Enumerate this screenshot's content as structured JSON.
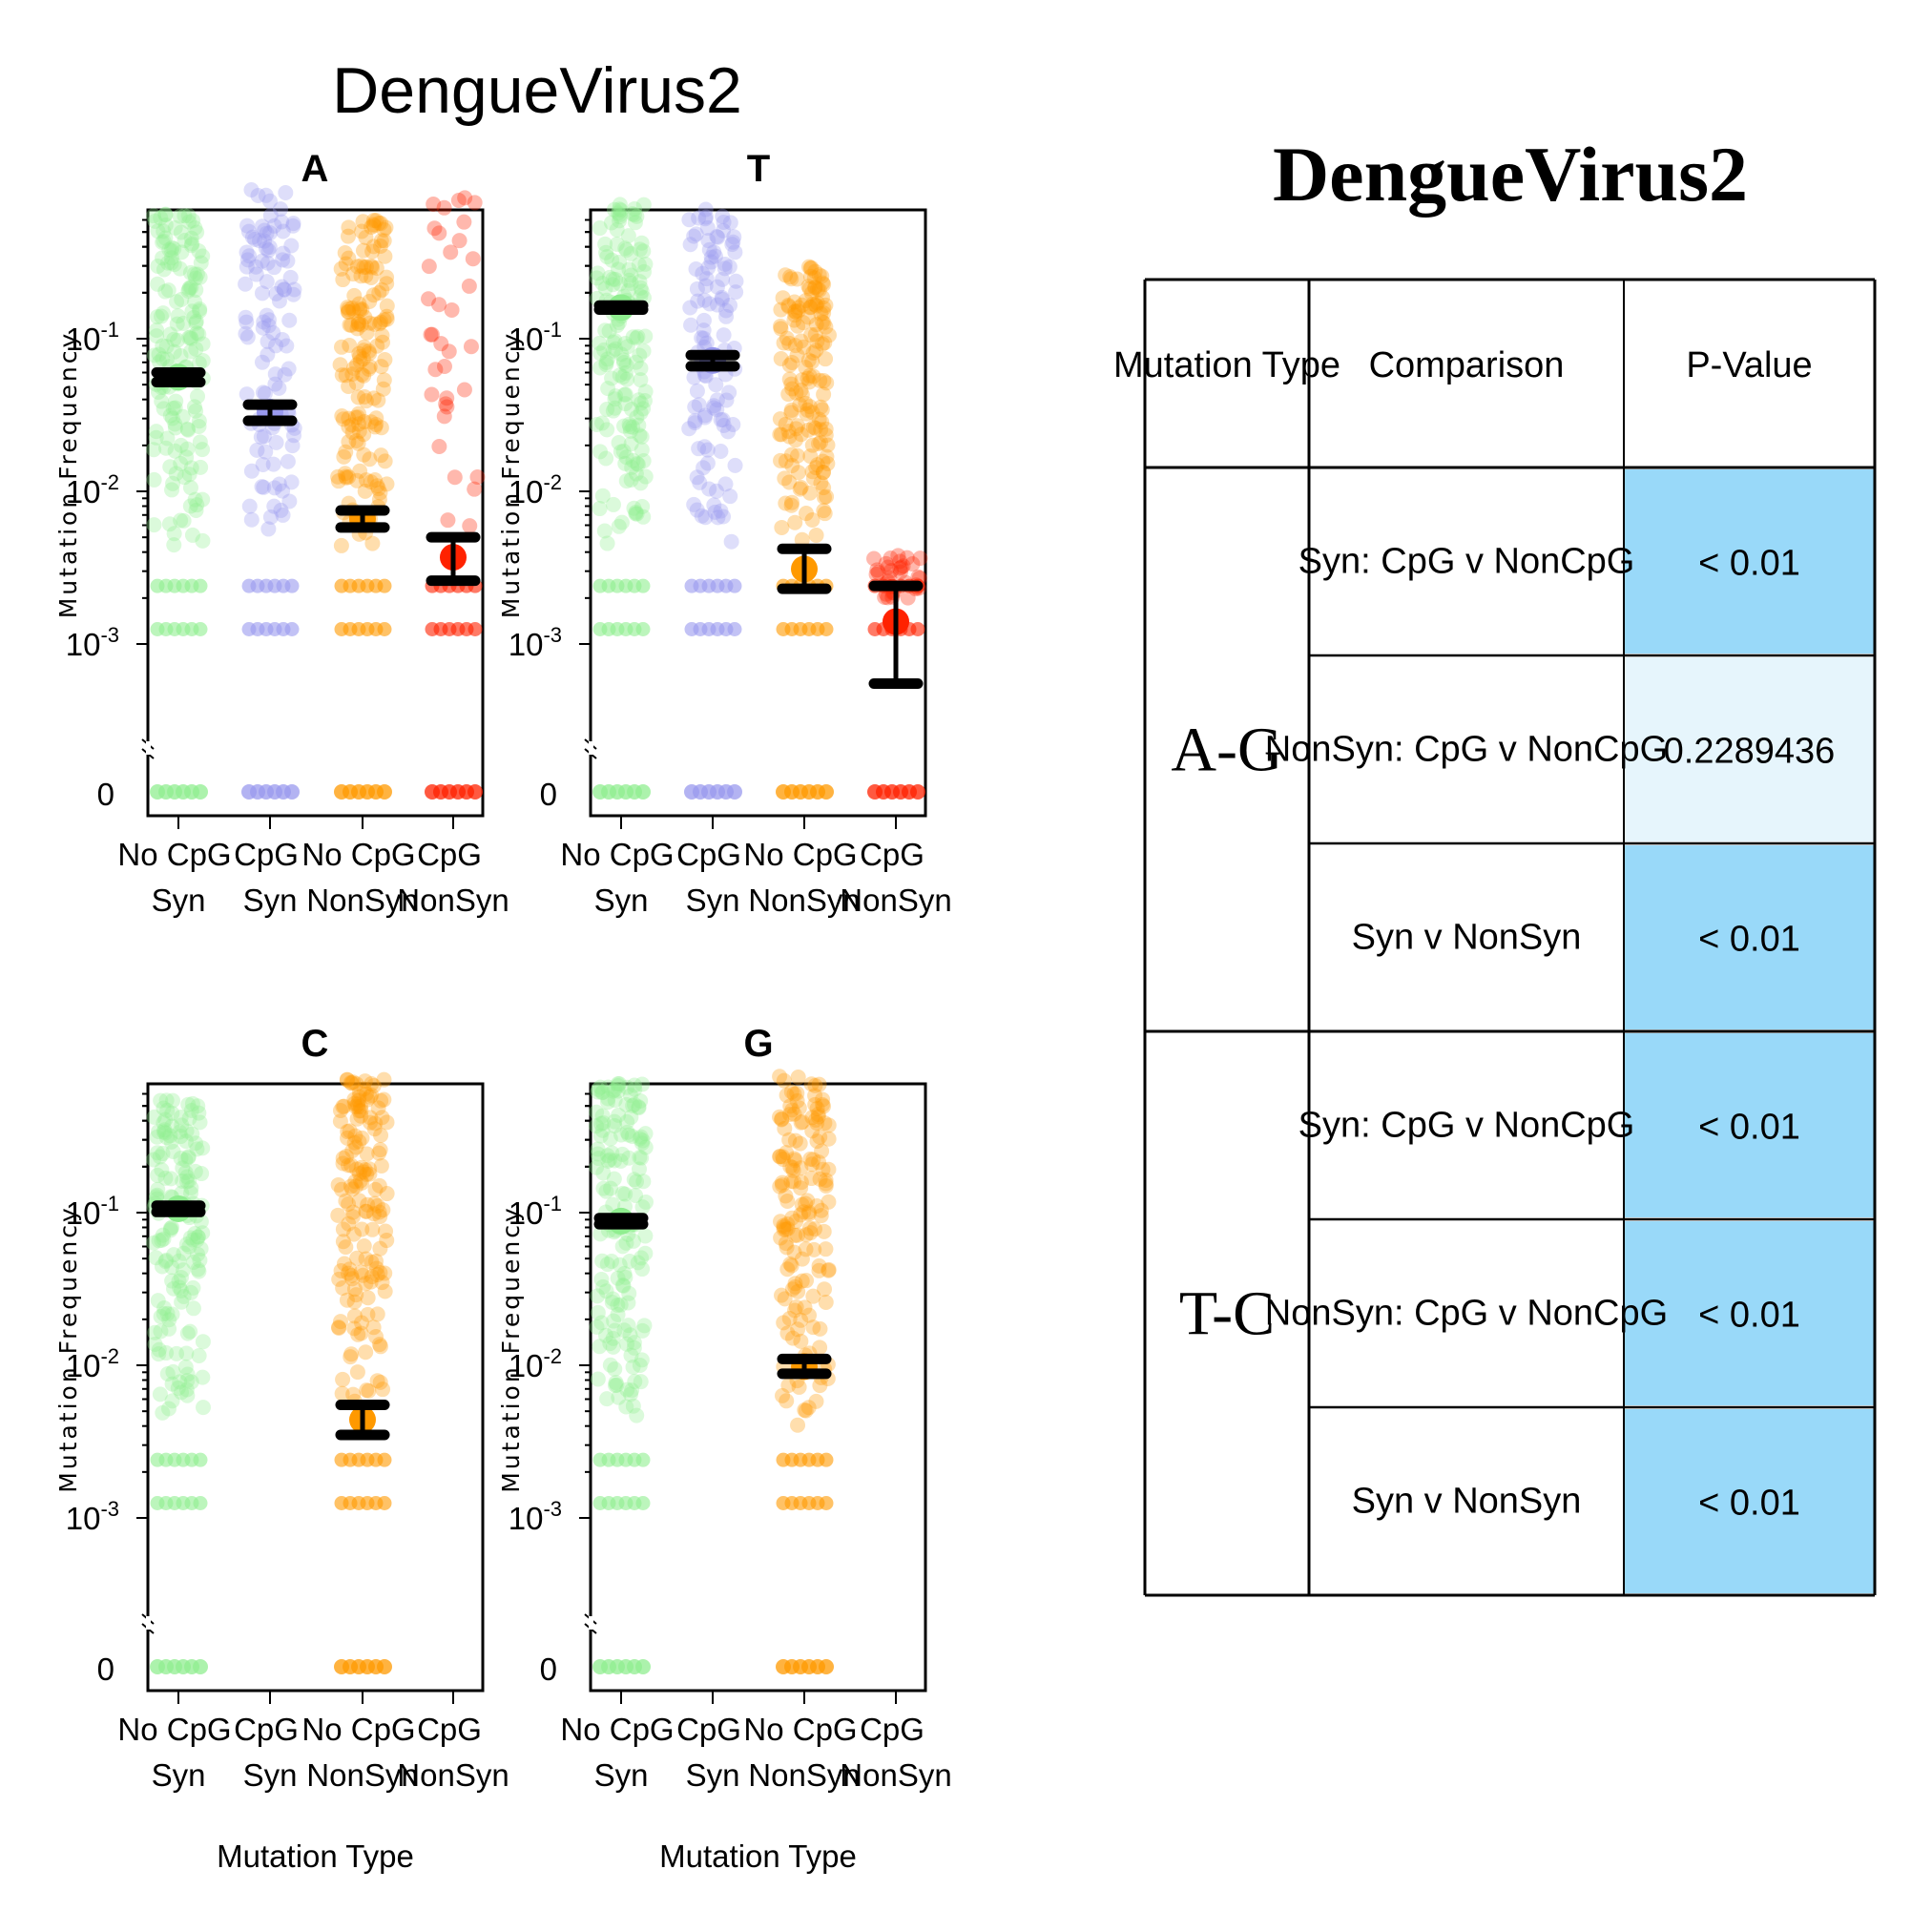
{
  "figure_title": "DengueVirus2",
  "table_title": "DengueVirus2",
  "colors": {
    "NoCpG Syn": "#90EE90",
    "CpG Syn": "#9999EE",
    "NoCpG NonSyn": "#FF9900",
    "CpG NonSyn": "#FF2200",
    "significant": "#99D9F9",
    "nonsignificant": "#E6F5FC"
  },
  "chart_data": [
    {
      "type": "scatter",
      "title": "A",
      "ylabel": "Mutation Frequency",
      "xlabel": "",
      "yscale": "log",
      "ylim": [
        0.0005,
        0.7
      ],
      "ytick_labels": [
        "10-1",
        "10-2",
        "10-3",
        "0"
      ],
      "categories": [
        [
          "No CpG",
          "Syn"
        ],
        [
          "CpG",
          "Syn"
        ],
        [
          "No CpG",
          "NonSyn"
        ],
        [
          "CpG",
          "NonSyn"
        ]
      ],
      "series": [
        {
          "name": "No CpG Syn",
          "mean": 0.056,
          "ci": [
            0.052,
            0.06
          ],
          "zeros": true
        },
        {
          "name": "CpG Syn",
          "mean": 0.033,
          "ci": [
            0.029,
            0.037
          ],
          "zeros": true
        },
        {
          "name": "No CpG NonSyn",
          "mean": 0.0066,
          "ci": [
            0.0058,
            0.0075
          ],
          "zeros": true
        },
        {
          "name": "CpG NonSyn",
          "mean": 0.0037,
          "ci": [
            0.0026,
            0.005
          ],
          "zeros": true
        }
      ]
    },
    {
      "type": "scatter",
      "title": "T",
      "ylabel": "Mutation Frequency",
      "xlabel": "",
      "yscale": "log",
      "ylim": [
        0.0005,
        0.7
      ],
      "ytick_labels": [
        "10-1",
        "10-2",
        "10-3",
        "0"
      ],
      "categories": [
        [
          "No CpG",
          "Syn"
        ],
        [
          "CpG",
          "Syn"
        ],
        [
          "No CpG",
          "NonSyn"
        ],
        [
          "CpG",
          "NonSyn"
        ]
      ],
      "series": [
        {
          "name": "No CpG Syn",
          "mean": 0.16,
          "ci": [
            0.155,
            0.165
          ],
          "zeros": true
        },
        {
          "name": "CpG Syn",
          "mean": 0.072,
          "ci": [
            0.066,
            0.078
          ],
          "zeros": true
        },
        {
          "name": "No CpG NonSyn",
          "mean": 0.0031,
          "ci": [
            0.0023,
            0.0042
          ],
          "zeros": true
        },
        {
          "name": "CpG NonSyn",
          "mean": 0.0014,
          "ci": [
            0.00055,
            0.0024
          ],
          "zeros": true
        }
      ]
    },
    {
      "type": "scatter",
      "title": "C",
      "ylabel": "Mutation Frequency",
      "xlabel": "Mutation Type",
      "yscale": "log",
      "ylim": [
        0.0005,
        0.7
      ],
      "ytick_labels": [
        "10-1",
        "10-2",
        "10-3",
        "0"
      ],
      "categories": [
        [
          "No CpG",
          "Syn"
        ],
        [
          "CpG",
          "Syn"
        ],
        [
          "No CpG",
          "NonSyn"
        ],
        [
          "CpG",
          "NonSyn"
        ]
      ],
      "series": [
        {
          "name": "No CpG Syn",
          "mean": 0.106,
          "ci": [
            0.101,
            0.111
          ],
          "zeros": true
        },
        {
          "name": "No CpG NonSyn",
          "mean": 0.0044,
          "ci": [
            0.0035,
            0.0055
          ],
          "zeros": true
        }
      ]
    },
    {
      "type": "scatter",
      "title": "G",
      "ylabel": "Mutation Frequency",
      "xlabel": "Mutation Type",
      "yscale": "log",
      "ylim": [
        0.0005,
        0.7
      ],
      "ytick_labels": [
        "10-1",
        "10-2",
        "10-3",
        "0"
      ],
      "categories": [
        [
          "No CpG",
          "Syn"
        ],
        [
          "CpG",
          "Syn"
        ],
        [
          "No CpG",
          "NonSyn"
        ],
        [
          "CpG",
          "NonSyn"
        ]
      ],
      "series": [
        {
          "name": "No CpG Syn",
          "mean": 0.088,
          "ci": [
            0.084,
            0.092
          ],
          "zeros": true
        },
        {
          "name": "No CpG NonSyn",
          "mean": 0.0098,
          "ci": [
            0.0088,
            0.011
          ],
          "zeros": true
        }
      ]
    },
    {
      "type": "table",
      "title": "DengueVirus2",
      "columns": [
        "Mutation Type",
        "Comparison",
        "P-Value"
      ],
      "groups": [
        {
          "name": "A-G",
          "rows": [
            {
              "comparison": "Syn: CpG v NonCpG",
              "p": "< 0.01",
              "significant": true
            },
            {
              "comparison": "NonSyn: CpG v NonCpG",
              "p": "0.2289436",
              "significant": false
            },
            {
              "comparison": "Syn v NonSyn",
              "p": "< 0.01",
              "significant": true
            }
          ]
        },
        {
          "name": "T-C",
          "rows": [
            {
              "comparison": "Syn: CpG v NonCpG",
              "p": "< 0.01",
              "significant": true
            },
            {
              "comparison": "NonSyn: CpG v NonCpG",
              "p": "< 0.01",
              "significant": true
            },
            {
              "comparison": "Syn v NonSyn",
              "p": "< 0.01",
              "significant": true
            }
          ]
        }
      ]
    }
  ]
}
